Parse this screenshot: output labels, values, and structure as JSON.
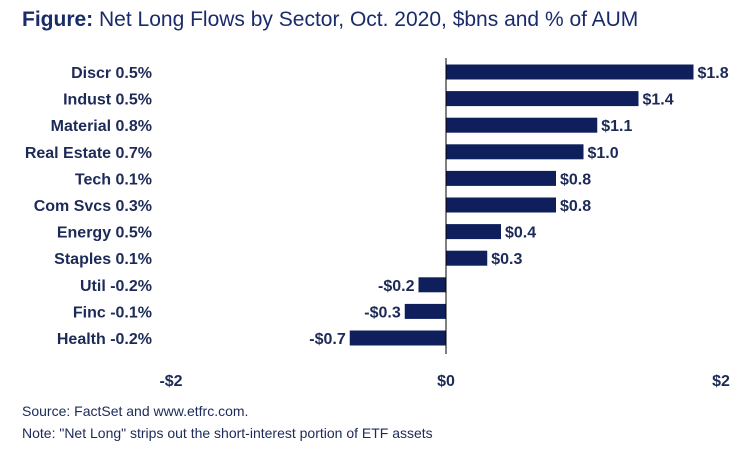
{
  "header": {
    "title_prefix": "Figure:",
    "title_text": "Net Long Flows by Sector, Oct. 2020, $bns and % of AUM"
  },
  "footer": {
    "source": "Source: FactSet and www.etfrc.com.",
    "note": "Note: \"Net Long\" strips out the short-interest portion of ETF assets"
  },
  "colors": {
    "bar": "#0f1f5c",
    "text": "#1c2a57",
    "title": "#1a2b6b",
    "axis": "#000000"
  },
  "chart_data": {
    "type": "bar",
    "orientation": "horizontal",
    "categories": [
      "Discr 0.5%",
      "Indust 0.5%",
      "Material 0.8%",
      "Real Estate 0.7%",
      "Tech 0.1%",
      "Com Svcs 0.3%",
      "Energy 0.5%",
      "Staples 0.1%",
      "Util -0.2%",
      "Finc -0.1%",
      "Health -0.2%"
    ],
    "values": [
      1.8,
      1.4,
      1.1,
      1.0,
      0.8,
      0.8,
      0.4,
      0.3,
      -0.2,
      -0.3,
      -0.7
    ],
    "value_labels": [
      "$1.8",
      "$1.4",
      "$1.1",
      "$1.0",
      "$0.8",
      "$0.8",
      "$0.4",
      "$0.3",
      "-$0.2",
      "-$0.3",
      "-$0.7"
    ],
    "x_ticks": [
      -2,
      0,
      2
    ],
    "x_tick_labels": [
      "-$2",
      "$0",
      "$2"
    ],
    "xlim": [
      -2,
      2
    ],
    "grid": false,
    "legend": "none"
  }
}
